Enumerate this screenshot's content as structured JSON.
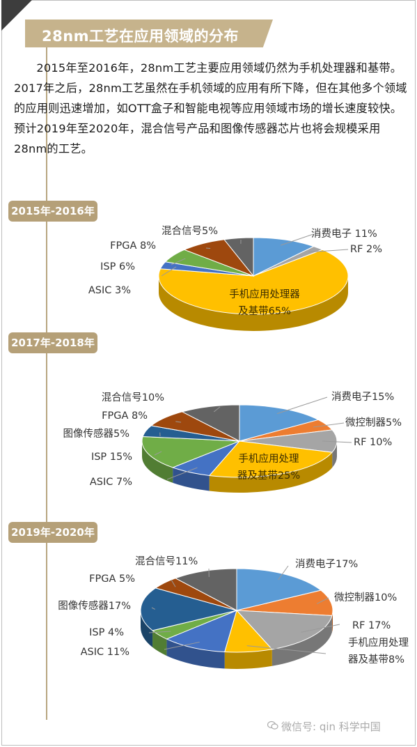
{
  "header": {
    "title": "28nm工艺在应用领域的分布"
  },
  "intro": {
    "text": "2015年至2016年，28nm工艺主要应用领域仍然为手机处理器和基带。2017年之后，28nm工艺虽然在手机领域的应用有所下降，但在其他多个领域的应用则迅速增加，如OTT盒子和智能电视等应用领域市场的增长速度较快。预计2019年至2020年，混合信号产品和图像传感器芯片也将会规模采用28nm的工艺。"
  },
  "watermark": {
    "text": "微信号: qin 科学中国"
  },
  "colors": {
    "消费电子": "#5b9bd5",
    "RF": "#a5a5a5",
    "微控制器": "#ed7d31",
    "手机应用处理器及基带": "#ffc000",
    "ASIC": "#4472c4",
    "ISP": "#70ad47",
    "图像传感器": "#255e91",
    "FPGA": "#9e480e",
    "混合信号": "#636363"
  },
  "chart_data": [
    {
      "type": "pie",
      "period": "2015年-2016年",
      "slices": [
        {
          "name": "消费电子",
          "value": 11,
          "label": "消费电子 11%"
        },
        {
          "name": "RF",
          "value": 2,
          "label": "RF 2%"
        },
        {
          "name": "手机应用处理器及基带",
          "value": 65,
          "label": [
            "手机应用处理器",
            "及基带65%"
          ]
        },
        {
          "name": "ASIC",
          "value": 3,
          "label": "ASIC 3%"
        },
        {
          "name": "ISP",
          "value": 6,
          "label": "ISP 6%"
        },
        {
          "name": "FPGA",
          "value": 8,
          "label": "FPGA 8%"
        },
        {
          "name": "混合信号",
          "value": 5,
          "label": "混合信号5%"
        }
      ]
    },
    {
      "type": "pie",
      "period": "2017年-2018年",
      "slices": [
        {
          "name": "消费电子",
          "value": 15,
          "label": "消费电子15%"
        },
        {
          "name": "微控制器",
          "value": 5,
          "label": "微控制器5%"
        },
        {
          "name": "RF",
          "value": 10,
          "label": "RF 10%"
        },
        {
          "name": "手机应用处理器及基带",
          "value": 25,
          "label": [
            "手机应用处理",
            "器及基带25%"
          ]
        },
        {
          "name": "ASIC",
          "value": 7,
          "label": "ASIC 7%"
        },
        {
          "name": "ISP",
          "value": 15,
          "label": "ISP 15%"
        },
        {
          "name": "图像传感器",
          "value": 5,
          "label": "图像传感器5%"
        },
        {
          "name": "FPGA",
          "value": 8,
          "label": "FPGA 8%"
        },
        {
          "name": "混合信号",
          "value": 10,
          "label": "混合信号10%"
        }
      ]
    },
    {
      "type": "pie",
      "period": "2019年-2020年",
      "slices": [
        {
          "name": "消费电子",
          "value": 17,
          "label": "消费电子17%"
        },
        {
          "name": "微控制器",
          "value": 10,
          "label": "微控制器10%"
        },
        {
          "name": "RF",
          "value": 17,
          "label": "RF 17%"
        },
        {
          "name": "手机应用处理器及基带",
          "value": 8,
          "label": [
            "手机应用处理",
            "器及基带8%"
          ]
        },
        {
          "name": "ASIC",
          "value": 11,
          "label": "ASIC 11%"
        },
        {
          "name": "ISP",
          "value": 4,
          "label": "ISP 4%"
        },
        {
          "name": "图像传感器",
          "value": 17,
          "label": "图像传感器17%"
        },
        {
          "name": "FPGA",
          "value": 5,
          "label": "FPGA 5%"
        },
        {
          "name": "混合信号",
          "value": 11,
          "label": "混合信号11%"
        }
      ]
    }
  ]
}
